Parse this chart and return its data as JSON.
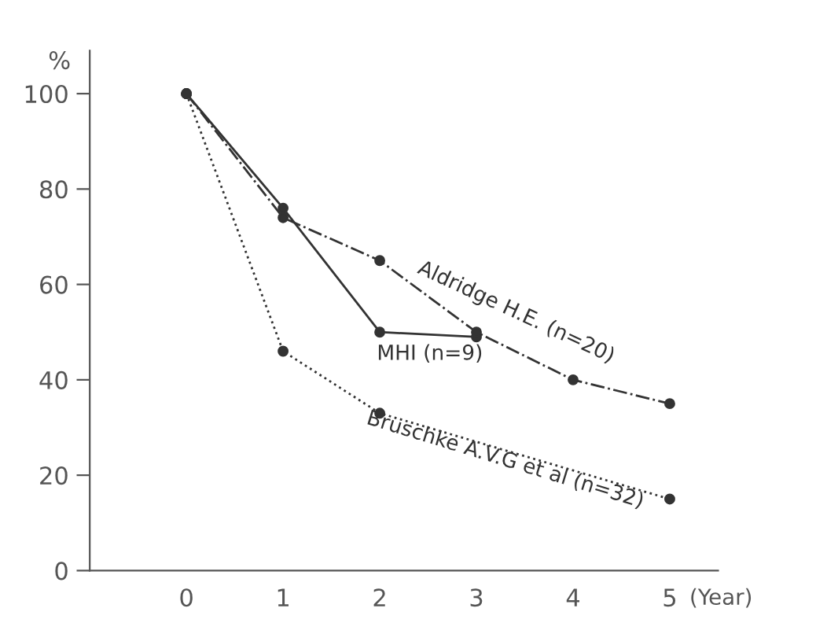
{
  "chart_data": {
    "type": "line",
    "ylabel": "%",
    "xlabel": "(Year)",
    "xlim": [
      -1,
      5.5
    ],
    "xticks": [
      0,
      1,
      2,
      3,
      4,
      5
    ],
    "ylim": [
      0,
      109
    ],
    "yticks": [
      0,
      20,
      40,
      60,
      80,
      100
    ],
    "marker": "circle",
    "grid": false,
    "legend": false,
    "series": [
      {
        "name": "MHI (n=9)",
        "color": "#333333",
        "line_style": "solid",
        "x": [
          0,
          1,
          2,
          3
        ],
        "values": [
          100,
          76,
          50,
          49
        ]
      },
      {
        "name": "Aldridge H.E. (n=20)",
        "color": "#333333",
        "line_style": "dashdot",
        "x": [
          0,
          1,
          2,
          3,
          4,
          5
        ],
        "values": [
          100,
          74,
          65,
          50,
          40,
          35
        ]
      },
      {
        "name": "Bruschke A.V.G et al (n=32)",
        "color": "#333333",
        "line_style": "dotted",
        "x": [
          0,
          1,
          2,
          5
        ],
        "values": [
          100,
          46,
          33,
          15
        ]
      }
    ]
  }
}
